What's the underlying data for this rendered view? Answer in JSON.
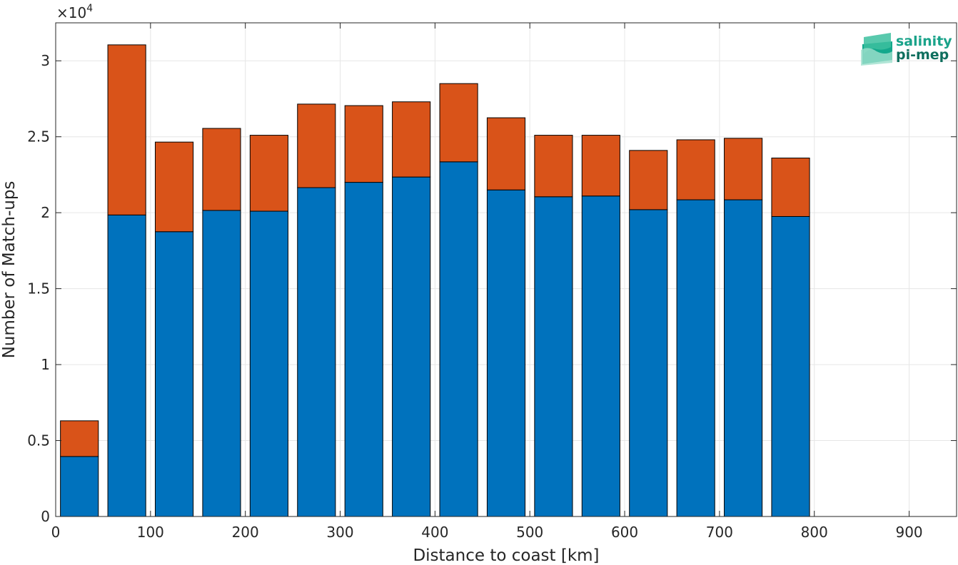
{
  "chart_data": {
    "type": "bar",
    "stacked": true,
    "xlabel": "Distance to coast [km]",
    "ylabel": "Number of Match-ups",
    "xlim": [
      0,
      950
    ],
    "ylim": [
      0,
      32500
    ],
    "y_exponent_label": "×10",
    "y_exponent_power": "4",
    "x_ticks": [
      0,
      100,
      200,
      300,
      400,
      500,
      600,
      700,
      800,
      900
    ],
    "x_tick_labels": [
      "0",
      "100",
      "200",
      "300",
      "400",
      "500",
      "600",
      "700",
      "800",
      "900"
    ],
    "y_ticks": [
      0,
      5000,
      10000,
      15000,
      20000,
      25000,
      30000
    ],
    "y_tick_labels": [
      "0",
      "0.5",
      "1",
      "1.5",
      "2",
      "2.5",
      "3"
    ],
    "grid": true,
    "bar_width": 40,
    "x": [
      25,
      75,
      125,
      175,
      225,
      275,
      325,
      375,
      425,
      475,
      525,
      575,
      625,
      675,
      725,
      775
    ],
    "series": [
      {
        "color": "#0072BD",
        "values": [
          3950,
          19850,
          18750,
          20150,
          20100,
          21650,
          22000,
          22350,
          23350,
          21500,
          21050,
          21100,
          20200,
          20850,
          20850,
          19750
        ]
      },
      {
        "color": "#D95319",
        "values": [
          2350,
          11200,
          5900,
          5400,
          5000,
          5500,
          5050,
          4950,
          5150,
          4750,
          4050,
          4000,
          3900,
          3950,
          4050,
          3850
        ]
      }
    ]
  },
  "logo": {
    "line1": "salinity",
    "line2": "pi-mep",
    "color1": "#1aa38a",
    "color2": "#0f6f5e"
  }
}
